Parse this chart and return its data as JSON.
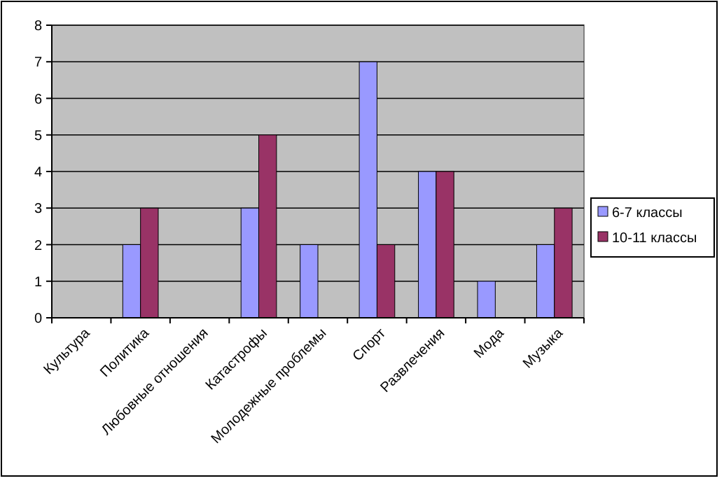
{
  "chart_data": {
    "type": "bar",
    "categories": [
      "Культура",
      "Политика",
      "Любовные отношения",
      "Катастрофы",
      "Молодежные проблемы",
      "Спорт",
      "Развлечения",
      "Мода",
      "Музыка"
    ],
    "series": [
      {
        "name": "6-7 классы",
        "color": "#9999ff",
        "values": [
          0,
          2,
          0,
          3,
          2,
          7,
          4,
          1,
          2
        ]
      },
      {
        "name": "10-11 классы",
        "color": "#993366",
        "values": [
          0,
          3,
          0,
          5,
          0,
          2,
          4,
          0,
          3
        ]
      }
    ],
    "ylim": [
      0,
      8
    ],
    "yticks": [
      0,
      1,
      2,
      3,
      4,
      5,
      6,
      7,
      8
    ],
    "grid": "y",
    "legend": "right"
  }
}
